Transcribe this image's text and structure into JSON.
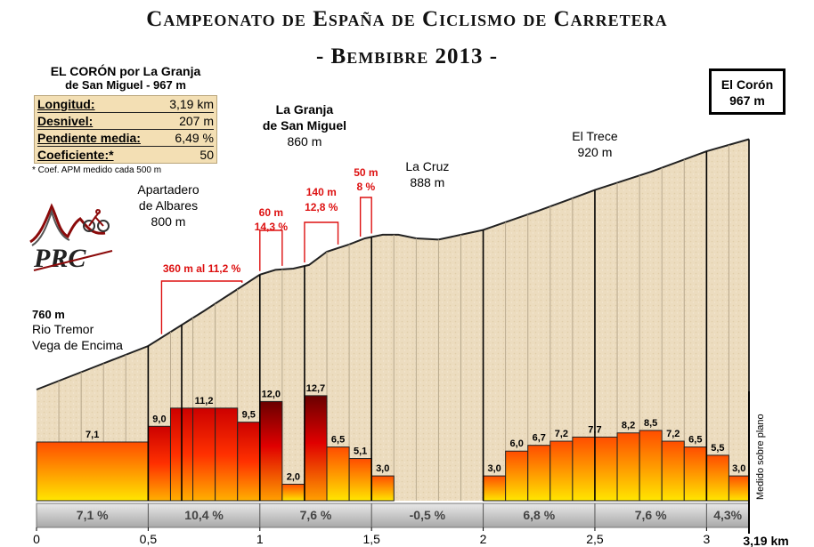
{
  "title_line1": "Campeonato de España de Ciclismo de Carretera",
  "title_line2": "- Bembibre 2013 -",
  "infobox": {
    "title1": "EL CORÓN  por La Granja",
    "title2": "de San Miguel - 967 m",
    "rows": [
      {
        "label": "Longitud:",
        "value": "3,19 km"
      },
      {
        "label": "Desnivel:",
        "value": "207 m"
      },
      {
        "label": "Pendiente media:",
        "value": "6,49 %"
      },
      {
        "label": "Coeficiente:*",
        "value": "50"
      }
    ],
    "note": "* Coef. APM medido cada 500 m"
  },
  "logo": {
    "text": "PRC"
  },
  "end_box": {
    "line1": "El Corón",
    "line2": "967 m"
  },
  "start_label": {
    "alt": "760 m",
    "line1": "Rio Tremor",
    "line2": "Vega de Encima"
  },
  "colors": {
    "dark_red": "#8b0a0a",
    "red": "#e00000",
    "orange": "#ff7a00",
    "yellow": "#ffd700",
    "sand": "#ecdcbf",
    "annotation_red": "#dd1111",
    "band": "#c2c2c2"
  },
  "chart_data": {
    "type": "area",
    "title": "Campeonato de España de Ciclismo de Carretera - Bembibre 2013 -",
    "xlabel": "km",
    "ylabel": "Medido sobre plano",
    "xlim": [
      0,
      3.19
    ],
    "x_ticks": [
      "0",
      "0,5",
      "1",
      "1,5",
      "2",
      "2,5",
      "3"
    ],
    "x_tick_values": [
      0,
      0.5,
      1,
      1.5,
      2,
      2.5,
      3
    ],
    "x_end_label": "3,19 km",
    "profile": {
      "x": [
        0,
        0.25,
        0.5,
        0.75,
        0.9,
        1.0,
        1.07,
        1.15,
        1.22,
        1.3,
        1.4,
        1.47,
        1.55,
        1.62,
        1.7,
        1.8,
        2.0,
        2.25,
        2.5,
        2.75,
        3.0,
        3.19
      ],
      "altitude": [
        760,
        778,
        796,
        825,
        843,
        855,
        859,
        860,
        863,
        874,
        880,
        885,
        888,
        888,
        885,
        884,
        892,
        908,
        925,
        940,
        957,
        967
      ]
    },
    "segments_100m": {
      "x_start": [
        0,
        0.5,
        0.6,
        0.7,
        0.8,
        0.9,
        1.0,
        1.1,
        1.2,
        1.3,
        1.4,
        1.5,
        1.6,
        1.7,
        1.8,
        1.9,
        2.0,
        2.1,
        2.2,
        2.3,
        2.4,
        2.5,
        2.6,
        2.7,
        2.8,
        2.9,
        3.0,
        3.1
      ],
      "x_end": [
        0.5,
        0.6,
        0.7,
        0.8,
        0.9,
        1.0,
        1.1,
        1.2,
        1.3,
        1.4,
        1.5,
        1.6,
        1.7,
        1.8,
        1.9,
        2.0,
        2.1,
        2.2,
        2.3,
        2.4,
        2.5,
        2.6,
        2.7,
        2.8,
        2.9,
        3.0,
        3.1,
        3.19
      ],
      "gradient": [
        7.1,
        9.0,
        11.2,
        11.2,
        11.2,
        9.5,
        12.0,
        2.0,
        12.7,
        6.5,
        5.1,
        3.0,
        null,
        null,
        null,
        null,
        3.0,
        6.0,
        6.7,
        7.2,
        7.7,
        7.7,
        8.2,
        8.5,
        7.2,
        6.5,
        5.5,
        3.0
      ],
      "labels": [
        "7,1",
        "9,0",
        "11,2",
        "",
        "",
        "9,5",
        "12,0",
        "2,0",
        "12,7",
        "6,5",
        "5,1",
        "3,0",
        "",
        "",
        "",
        "",
        "3,0",
        "6,0",
        "6,7",
        "7,2",
        "7,7",
        "",
        "8,2",
        "8,5",
        "7,2",
        "6,5",
        "5,5",
        "3,0"
      ]
    },
    "average_500m": {
      "x_start": [
        0,
        0.5,
        1.0,
        1.5,
        2.0,
        2.5,
        3.0
      ],
      "x_end": [
        0.5,
        1.0,
        1.5,
        2.0,
        2.5,
        3.0,
        3.19
      ],
      "labels": [
        "7,1 %",
        "10,4 %",
        "7,6 %",
        "-0,5 %",
        "6,8 %",
        "7,6 %",
        "4,3%"
      ]
    },
    "annotations": [
      {
        "x": 0.65,
        "line1": "Apartadero",
        "line2": "de Albares",
        "line3": "800 m"
      },
      {
        "x": 1.2,
        "line1": "La Granja",
        "line2": "de San Miguel",
        "line3": "860 m"
      },
      {
        "x": 1.75,
        "line1": "La Cruz",
        "line2": "888 m",
        "line3": ""
      },
      {
        "x": 2.5,
        "line1": "El Trece",
        "line2": "920 m",
        "line3": ""
      }
    ],
    "steep_sections": [
      {
        "x_start": 0.56,
        "x_end": 0.92,
        "line1": "360 m al 11,2 %",
        "line2": ""
      },
      {
        "x_start": 1.0,
        "x_end": 1.1,
        "line1": "60 m",
        "line2": "14,3 %"
      },
      {
        "x_start": 1.2,
        "x_end": 1.35,
        "line1": "140 m",
        "line2": "12,8 %"
      },
      {
        "x_start": 1.45,
        "x_end": 1.5,
        "line1": "50 m",
        "line2": "8 %"
      }
    ],
    "marker_lines_x": [
      0.5,
      0.65,
      1.0,
      1.2,
      1.5,
      2.0,
      2.5,
      3.0,
      3.19
    ]
  }
}
